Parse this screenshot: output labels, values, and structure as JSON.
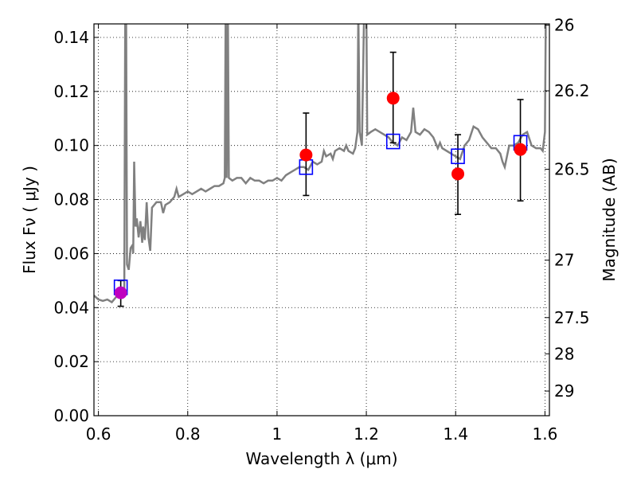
{
  "chart_data": {
    "type": "scatter",
    "xlabel": "Wavelength  λ (μm)",
    "ylabel": "Flux  Fν  ( μJy )",
    "y2label": "Magnitude (AB)",
    "xlim": [
      0.59,
      1.61
    ],
    "ylim": [
      0.0,
      0.145
    ],
    "grid": true,
    "x_ticks": [
      {
        "value": 0.6,
        "label": "0.6"
      },
      {
        "value": 0.8,
        "label": "0.8"
      },
      {
        "value": 1.0,
        "label": "1"
      },
      {
        "value": 1.2,
        "label": "1.2"
      },
      {
        "value": 1.4,
        "label": "1.4"
      },
      {
        "value": 1.6,
        "label": "1.6"
      }
    ],
    "y_ticks": [
      {
        "value": 0.0,
        "label": "0.00"
      },
      {
        "value": 0.02,
        "label": "0.02"
      },
      {
        "value": 0.04,
        "label": "0.04"
      },
      {
        "value": 0.06,
        "label": "0.06"
      },
      {
        "value": 0.08,
        "label": "0.08"
      },
      {
        "value": 0.1,
        "label": "0.10"
      },
      {
        "value": 0.12,
        "label": "0.12"
      },
      {
        "value": 0.14,
        "label": "0.14"
      }
    ],
    "mag_ticks": [
      {
        "value": 26,
        "label": "26"
      },
      {
        "value": 26.2,
        "label": "26.2"
      },
      {
        "value": 26.5,
        "label": "26.5"
      },
      {
        "value": 27,
        "label": "27"
      },
      {
        "value": 27.5,
        "label": "27.5"
      },
      {
        "value": 28,
        "label": "28"
      },
      {
        "value": 29,
        "label": "29"
      }
    ],
    "colors": {
      "model": "#808080",
      "observed": "#ff0000",
      "observed_first": "#bf00bf",
      "model_photometry": "#0000ff",
      "errorbar": "#000000"
    },
    "observed": [
      {
        "x": 0.65,
        "y": 0.0455,
        "yerr_low": 0.005,
        "yerr_high": 0.0045
      },
      {
        "x": 1.065,
        "y": 0.0965,
        "yerr_low": 0.015,
        "yerr_high": 0.0155
      },
      {
        "x": 1.26,
        "y": 0.1175,
        "yerr_low": 0.0165,
        "yerr_high": 0.017
      },
      {
        "x": 1.405,
        "y": 0.0895,
        "yerr_low": 0.015,
        "yerr_high": 0.0145
      },
      {
        "x": 1.545,
        "y": 0.0985,
        "yerr_low": 0.019,
        "yerr_high": 0.0185
      }
    ],
    "model_photometry": [
      {
        "x": 0.65,
        "y": 0.0475
      },
      {
        "x": 1.065,
        "y": 0.092
      },
      {
        "x": 1.26,
        "y": 0.1015
      },
      {
        "x": 1.405,
        "y": 0.096
      },
      {
        "x": 1.545,
        "y": 0.101
      }
    ],
    "model_spectrum": [
      [
        0.59,
        0.0445
      ],
      [
        0.6,
        0.043
      ],
      [
        0.61,
        0.0425
      ],
      [
        0.62,
        0.043
      ],
      [
        0.63,
        0.042
      ],
      [
        0.64,
        0.044
      ],
      [
        0.65,
        0.0455
      ],
      [
        0.655,
        0.045
      ],
      [
        0.658,
        0.047
      ],
      [
        0.66,
        0.15
      ],
      [
        0.662,
        0.15
      ],
      [
        0.664,
        0.056
      ],
      [
        0.668,
        0.054
      ],
      [
        0.672,
        0.062
      ],
      [
        0.676,
        0.063
      ],
      [
        0.678,
        0.06
      ],
      [
        0.68,
        0.094
      ],
      [
        0.683,
        0.07
      ],
      [
        0.686,
        0.073
      ],
      [
        0.69,
        0.066
      ],
      [
        0.694,
        0.072
      ],
      [
        0.698,
        0.064
      ],
      [
        0.7,
        0.07
      ],
      [
        0.704,
        0.065
      ],
      [
        0.708,
        0.079
      ],
      [
        0.712,
        0.066
      ],
      [
        0.716,
        0.061
      ],
      [
        0.72,
        0.077
      ],
      [
        0.73,
        0.079
      ],
      [
        0.74,
        0.079
      ],
      [
        0.745,
        0.075
      ],
      [
        0.75,
        0.078
      ],
      [
        0.76,
        0.079
      ],
      [
        0.77,
        0.081
      ],
      [
        0.775,
        0.084
      ],
      [
        0.78,
        0.081
      ],
      [
        0.79,
        0.082
      ],
      [
        0.8,
        0.083
      ],
      [
        0.81,
        0.082
      ],
      [
        0.82,
        0.083
      ],
      [
        0.83,
        0.084
      ],
      [
        0.84,
        0.083
      ],
      [
        0.85,
        0.084
      ],
      [
        0.86,
        0.085
      ],
      [
        0.87,
        0.085
      ],
      [
        0.88,
        0.086
      ],
      [
        0.883,
        0.088
      ],
      [
        0.885,
        0.15
      ],
      [
        0.887,
        0.088
      ],
      [
        0.89,
        0.15
      ],
      [
        0.892,
        0.088
      ],
      [
        0.9,
        0.087
      ],
      [
        0.91,
        0.088
      ],
      [
        0.92,
        0.088
      ],
      [
        0.93,
        0.086
      ],
      [
        0.94,
        0.088
      ],
      [
        0.95,
        0.087
      ],
      [
        0.96,
        0.087
      ],
      [
        0.97,
        0.086
      ],
      [
        0.98,
        0.087
      ],
      [
        0.99,
        0.087
      ],
      [
        1.0,
        0.088
      ],
      [
        1.01,
        0.087
      ],
      [
        1.02,
        0.089
      ],
      [
        1.03,
        0.09
      ],
      [
        1.04,
        0.091
      ],
      [
        1.05,
        0.092
      ],
      [
        1.06,
        0.092
      ],
      [
        1.07,
        0.091
      ],
      [
        1.08,
        0.094
      ],
      [
        1.09,
        0.093
      ],
      [
        1.1,
        0.094
      ],
      [
        1.105,
        0.098
      ],
      [
        1.11,
        0.096
      ],
      [
        1.12,
        0.097
      ],
      [
        1.125,
        0.095
      ],
      [
        1.13,
        0.098
      ],
      [
        1.14,
        0.099
      ],
      [
        1.15,
        0.098
      ],
      [
        1.155,
        0.1
      ],
      [
        1.16,
        0.098
      ],
      [
        1.17,
        0.097
      ],
      [
        1.175,
        0.099
      ],
      [
        1.18,
        0.105
      ],
      [
        1.182,
        0.15
      ],
      [
        1.185,
        0.105
      ],
      [
        1.19,
        0.1
      ],
      [
        1.195,
        0.15
      ],
      [
        1.2,
        0.15
      ],
      [
        1.202,
        0.104
      ],
      [
        1.21,
        0.105
      ],
      [
        1.22,
        0.106
      ],
      [
        1.23,
        0.105
      ],
      [
        1.24,
        0.104
      ],
      [
        1.25,
        0.103
      ],
      [
        1.26,
        0.101
      ],
      [
        1.27,
        0.1
      ],
      [
        1.28,
        0.103
      ],
      [
        1.29,
        0.102
      ],
      [
        1.3,
        0.105
      ],
      [
        1.305,
        0.114
      ],
      [
        1.31,
        0.105
      ],
      [
        1.32,
        0.104
      ],
      [
        1.33,
        0.106
      ],
      [
        1.34,
        0.105
      ],
      [
        1.35,
        0.103
      ],
      [
        1.36,
        0.099
      ],
      [
        1.365,
        0.101
      ],
      [
        1.37,
        0.099
      ],
      [
        1.38,
        0.098
      ],
      [
        1.39,
        0.097
      ],
      [
        1.4,
        0.096
      ],
      [
        1.41,
        0.095
      ],
      [
        1.42,
        0.1
      ],
      [
        1.43,
        0.102
      ],
      [
        1.44,
        0.107
      ],
      [
        1.45,
        0.106
      ],
      [
        1.46,
        0.103
      ],
      [
        1.47,
        0.101
      ],
      [
        1.48,
        0.099
      ],
      [
        1.49,
        0.099
      ],
      [
        1.5,
        0.097
      ],
      [
        1.505,
        0.094
      ],
      [
        1.51,
        0.092
      ],
      [
        1.52,
        0.1
      ],
      [
        1.53,
        0.1
      ],
      [
        1.54,
        0.101
      ],
      [
        1.55,
        0.104
      ],
      [
        1.56,
        0.105
      ],
      [
        1.57,
        0.1
      ],
      [
        1.58,
        0.099
      ],
      [
        1.59,
        0.099
      ],
      [
        1.595,
        0.098
      ],
      [
        1.6,
        0.105
      ],
      [
        1.602,
        0.15
      ],
      [
        1.61,
        0.15
      ]
    ]
  }
}
